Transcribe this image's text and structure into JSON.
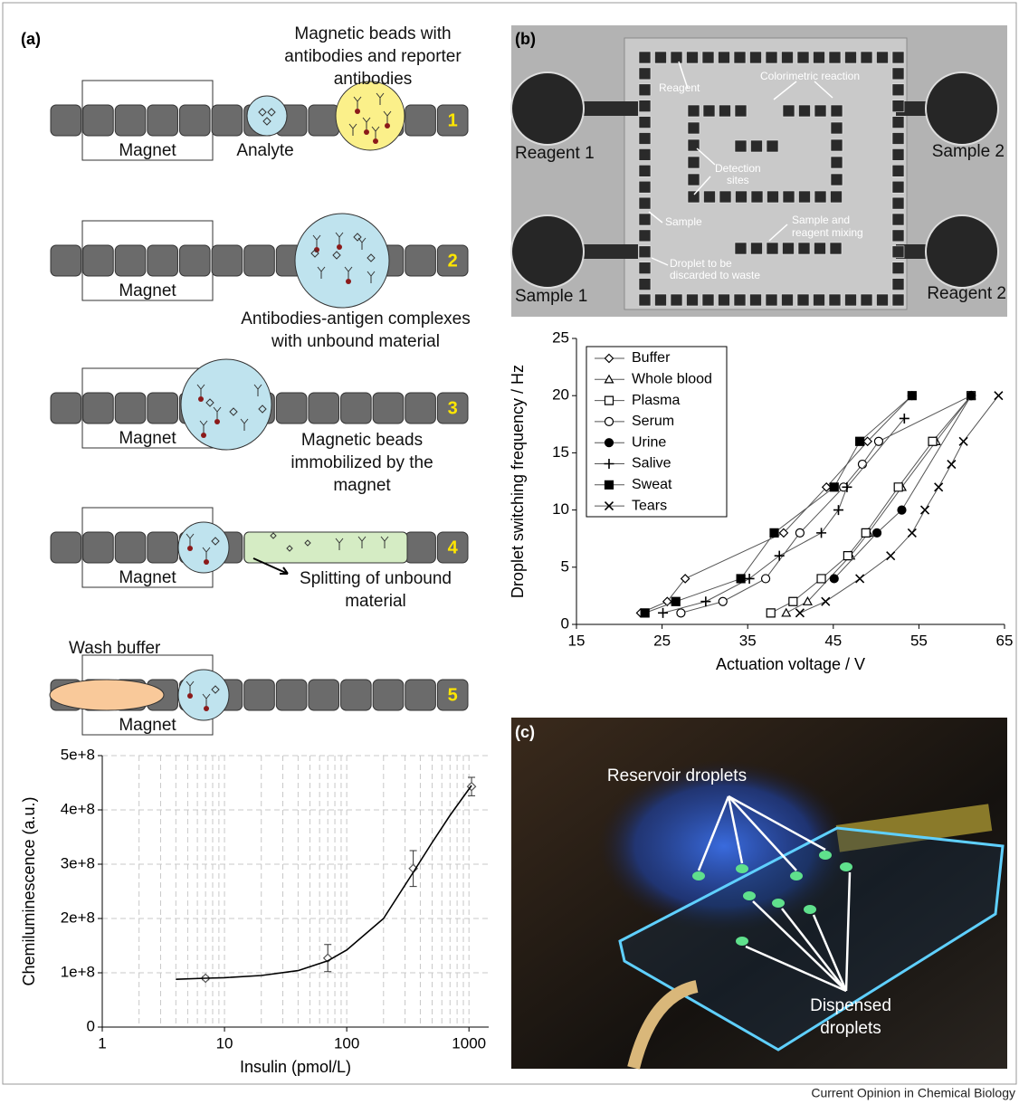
{
  "panel_labels": [
    "(a)",
    "(b)",
    "(c)"
  ],
  "diagram": {
    "steps": [
      {
        "number": "1",
        "magnet": "Magnet",
        "analyte": "Analyte",
        "beads": [
          "Magnetic beads with",
          "antibodies and reporter",
          "antibodies"
        ]
      },
      {
        "number": "2",
        "magnet": "Magnet",
        "caption": [
          "Antibodies-antigen complexes",
          "with unbound material"
        ]
      },
      {
        "number": "3",
        "magnet": "Magnet",
        "caption": [
          "Magnetic beads",
          "immobilized by the",
          "magnet"
        ]
      },
      {
        "number": "4",
        "magnet": "Magnet",
        "caption": [
          "Splitting of unbound",
          "material"
        ]
      },
      {
        "number": "5",
        "magnet": "Magnet",
        "wash": "Wash buffer"
      }
    ]
  },
  "photo_b": {
    "reagent_1": "Reagent 1",
    "sample_2": "Sample 2",
    "sample_1": "Sample 1",
    "reagent_2": "Reagent 2",
    "reagent": "Reagent",
    "colorimetric": "Colorimetric reaction",
    "detection": [
      "Detection",
      "sites"
    ],
    "sample": "Sample",
    "mixing": [
      "Sample and",
      "reagent mixing"
    ],
    "waste": [
      "Droplet to be",
      "discarded to waste"
    ]
  },
  "photo_c": {
    "reservoir": "Reservoir droplets",
    "dispensed": [
      "Dispensed",
      "droplets"
    ]
  },
  "chart_data": [
    {
      "type": "line",
      "xscale": "log",
      "xlim": [
        1,
        1450
      ],
      "ylim": [
        0,
        500000000
      ],
      "xticks": [
        1,
        10,
        100,
        1000
      ],
      "yticks": [
        0,
        {
          "value": 100000000,
          "label": "1e+8"
        },
        {
          "value": 200000000,
          "label": "2e+8"
        },
        {
          "value": 300000000,
          "label": "3e+8"
        },
        {
          "value": 400000000,
          "label": "4e+8"
        },
        {
          "value": 500000000,
          "label": "5e+8"
        }
      ],
      "xlabel": "Insulin (pmol/L)",
      "ylabel": "Chemiluminescence (a.u.)",
      "grid": true,
      "series": [
        {
          "x": [
            7,
            70,
            350,
            1050
          ],
          "values": [
            90000000,
            127000000,
            292000000,
            443000000
          ],
          "errors": [
            3000000,
            25000000,
            33000000,
            17000000
          ],
          "marker": "diamond",
          "color": "#555555"
        },
        {
          "x": [
            4,
            7,
            10,
            20,
            40,
            70,
            100,
            200,
            350,
            500,
            700,
            1050
          ],
          "values": [
            88000000,
            90000000,
            91000000,
            95000000,
            104000000,
            122000000,
            142000000,
            200000000,
            285000000,
            340000000,
            390000000,
            445000000
          ],
          "color": "#000000"
        }
      ]
    },
    {
      "type": "scatter",
      "connect": true,
      "xlim": [
        15,
        65
      ],
      "ylim": [
        0,
        25
      ],
      "xticks": [
        15,
        25,
        35,
        45,
        55,
        65
      ],
      "yticks": [
        0,
        5,
        10,
        15,
        20,
        25
      ],
      "xlabel": "Actuation voltage / V",
      "ylabel": "Droplet switching frequency / Hz",
      "grid": false,
      "legend": "upper left",
      "series": [
        {
          "name": "Buffer",
          "marker": "diamond",
          "color": "#000000",
          "x": [
            22.5,
            25.6,
            27.7,
            39.2,
            44.2,
            49,
            54.2
          ],
          "values": [
            1,
            2,
            4,
            8,
            12,
            16,
            20
          ]
        },
        {
          "name": "Whole blood",
          "marker": "triangle",
          "color": "#000000",
          "x": [
            39.5,
            42,
            47,
            49.1,
            53,
            57,
            61.1
          ],
          "values": [
            1,
            2,
            6,
            8,
            12,
            16,
            20
          ]
        },
        {
          "name": "Plasma",
          "marker": "square",
          "color": "#000000",
          "x": [
            37.7,
            40.3,
            43.6,
            46.7,
            48.8,
            52.6,
            56.6,
            61.1
          ],
          "values": [
            1,
            2,
            4,
            6,
            8,
            12,
            16,
            20
          ]
        },
        {
          "name": "Serum",
          "marker": "circle",
          "color": "#000000",
          "x": [
            27.2,
            32.1,
            37.1,
            41.1,
            46.2,
            48.4,
            50.3,
            61.1
          ],
          "values": [
            1,
            2,
            4,
            8,
            12,
            14,
            16,
            20
          ]
        },
        {
          "name": "Urine",
          "marker": "circle-filled",
          "color": "#000000",
          "x": [
            45.1,
            50.1,
            53,
            61.1
          ],
          "values": [
            4,
            8,
            10,
            20
          ]
        },
        {
          "name": "Salive",
          "marker": "plus",
          "color": "#000000",
          "x": [
            25.1,
            30.1,
            35.2,
            38.7,
            43.6,
            45.6,
            46.6,
            53.3
          ],
          "values": [
            1,
            2,
            4,
            6,
            8,
            10,
            12,
            18
          ]
        },
        {
          "name": "Sweat",
          "marker": "square-filled",
          "color": "#000000",
          "x": [
            23,
            26.6,
            34.2,
            38.1,
            45.1,
            48.1,
            54.2
          ],
          "values": [
            1,
            2,
            4,
            8,
            12,
            16,
            20
          ]
        },
        {
          "name": "Tears",
          "marker": "x",
          "color": "#000000",
          "x": [
            41.1,
            44.1,
            48.1,
            51.7,
            54.2,
            55.7,
            57.3,
            58.8,
            60.2,
            64.3
          ],
          "values": [
            1,
            2,
            4,
            6,
            8,
            10,
            12,
            14,
            16,
            20
          ]
        }
      ]
    }
  ],
  "footer": "Current Opinion in Chemical Biology"
}
